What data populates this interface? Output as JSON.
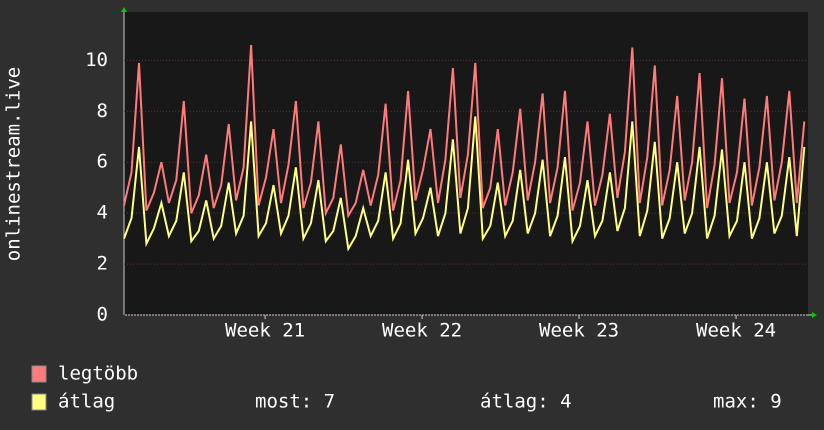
{
  "chart_data": {
    "type": "line",
    "y_label": "onlinestream.live",
    "x": [
      0,
      8,
      16,
      24,
      32,
      40,
      48,
      56,
      64,
      72,
      80,
      88,
      96,
      104,
      112,
      120,
      128,
      136,
      144,
      152,
      160,
      168,
      176,
      184,
      192,
      200,
      208,
      216,
      224,
      232,
      240,
      248,
      256,
      264,
      272,
      280,
      288,
      296,
      304,
      312,
      320,
      328,
      336,
      344,
      352,
      360,
      368,
      376,
      384,
      392,
      400,
      408,
      416,
      424,
      432,
      440,
      448,
      456,
      464,
      472,
      480,
      488,
      496,
      504,
      512,
      520,
      528,
      536,
      544,
      552,
      560,
      568,
      576,
      584,
      592,
      600,
      608,
      616,
      624,
      632,
      640,
      648,
      656,
      664,
      672,
      680,
      688,
      696,
      704,
      712,
      720,
      728
    ],
    "xlim": [
      0,
      732
    ],
    "xticks": [
      {
        "value": 151,
        "label": "Week 21"
      },
      {
        "value": 319,
        "label": "Week 22"
      },
      {
        "value": 487,
        "label": "Week 23"
      },
      {
        "value": 655,
        "label": "Week 24"
      }
    ],
    "ylim": [
      0,
      11.9
    ],
    "yticks": [
      0,
      2,
      4,
      6,
      8,
      10
    ],
    "grid": true,
    "series": [
      {
        "name": "legtöbb",
        "color": "#ff7b7b",
        "values": [
          4.3,
          5.6,
          9.9,
          4.1,
          4.8,
          6.0,
          4.4,
          5.3,
          8.4,
          4.0,
          4.7,
          6.3,
          4.2,
          5.1,
          7.5,
          4.5,
          5.8,
          10.6,
          4.3,
          5.4,
          7.3,
          4.4,
          5.9,
          8.4,
          4.2,
          5.2,
          7.6,
          4.0,
          4.6,
          6.7,
          3.9,
          4.4,
          5.7,
          4.3,
          5.5,
          8.3,
          4.1,
          5.3,
          8.8,
          4.5,
          5.7,
          7.3,
          4.4,
          6.1,
          9.7,
          4.6,
          6.3,
          9.9,
          4.2,
          5.0,
          7.3,
          4.3,
          5.6,
          8.1,
          4.5,
          6.0,
          8.7,
          4.4,
          5.8,
          8.8,
          4.1,
          5.2,
          7.6,
          4.3,
          5.5,
          7.9,
          4.6,
          6.4,
          10.5,
          4.4,
          6.2,
          9.8,
          4.3,
          5.7,
          8.6,
          4.5,
          6.0,
          9.5,
          4.2,
          5.9,
          9.3,
          4.4,
          5.6,
          8.5,
          4.3,
          5.8,
          8.6,
          4.5,
          6.0,
          8.8,
          4.4,
          7.6
        ]
      },
      {
        "name": "átlag",
        "color": "#ffff80",
        "values": [
          3.0,
          3.8,
          6.6,
          2.8,
          3.4,
          4.4,
          3.1,
          3.7,
          5.6,
          2.9,
          3.3,
          4.5,
          3.0,
          3.5,
          5.2,
          3.2,
          3.9,
          7.6,
          3.1,
          3.6,
          5.1,
          3.2,
          3.9,
          5.8,
          3.0,
          3.6,
          5.3,
          2.9,
          3.3,
          4.6,
          2.6,
          3.1,
          4.2,
          3.1,
          3.7,
          5.6,
          3.0,
          3.6,
          6.1,
          3.2,
          3.8,
          5.0,
          3.1,
          4.0,
          6.9,
          3.2,
          4.2,
          7.8,
          3.0,
          3.5,
          5.2,
          3.1,
          3.7,
          5.7,
          3.2,
          4.0,
          6.1,
          3.1,
          3.9,
          6.2,
          2.9,
          3.5,
          5.3,
          3.1,
          3.7,
          5.6,
          3.3,
          4.2,
          7.6,
          3.1,
          4.1,
          6.8,
          3.0,
          3.8,
          6.0,
          3.2,
          4.0,
          6.6,
          3.0,
          3.9,
          6.5,
          3.1,
          3.7,
          6.0,
          3.0,
          3.8,
          6.0,
          3.2,
          3.9,
          6.2,
          3.1,
          6.6
        ]
      }
    ],
    "stats": [
      "most: 7",
      "átlag: 4",
      "max: 9"
    ]
  }
}
